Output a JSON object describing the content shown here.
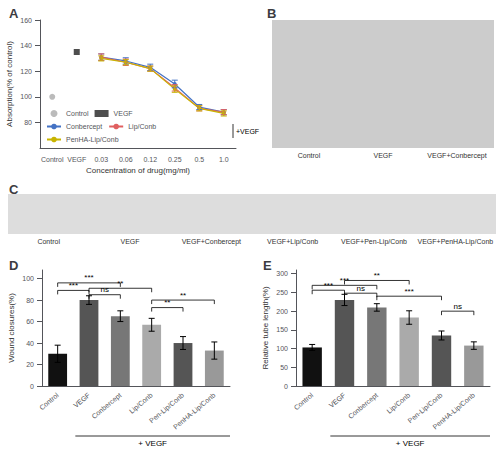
{
  "chart_data": [
    {
      "type": "line",
      "title": "A",
      "categories": [
        "Control",
        "VEGF",
        "0.03",
        "0.06",
        "0.12",
        "0.25",
        "0.5",
        "1.0"
      ],
      "series": [
        {
          "name": "Control",
          "type": "scatter",
          "color": "#aaaaaa",
          "marker": "circle",
          "values": [
            100,
            null,
            null,
            null,
            null,
            null,
            null,
            null
          ]
        },
        {
          "name": "VEGF",
          "type": "scatter",
          "color": "#222222",
          "marker": "square",
          "values": [
            null,
            135,
            null,
            null,
            null,
            null,
            null,
            null
          ]
        },
        {
          "name": "Conbercept",
          "type": "line",
          "color": "#4472c4",
          "marker": "circle",
          "values": [
            null,
            null,
            131,
            128,
            123,
            110,
            92,
            88
          ],
          "yerr": [
            null,
            null,
            2.5,
            2.5,
            2.5,
            3,
            2,
            2
          ]
        },
        {
          "name": "Lip/Conb",
          "type": "line",
          "color": "#e06060",
          "marker": "circle",
          "values": [
            null,
            null,
            131,
            127,
            122,
            107,
            91,
            88
          ],
          "yerr": [
            null,
            null,
            2.5,
            2.5,
            2,
            2.5,
            2,
            2
          ]
        },
        {
          "name": "PenHA-Lip/Conb",
          "type": "line",
          "color": "#c8b400",
          "marker": "circle",
          "values": [
            null,
            null,
            130,
            127,
            122,
            106,
            91,
            87
          ],
          "yerr": [
            null,
            null,
            2,
            2,
            2,
            2.5,
            2,
            2
          ]
        }
      ],
      "xlabel": "Concentration of drug(mg/ml)",
      "ylabel": "Absorption(% of control)",
      "ylim": [
        60,
        160
      ],
      "yticks": [
        80,
        100,
        120,
        140,
        160
      ],
      "legend": "lower left",
      "grid": false,
      "annotations": [
        "+VEGF"
      ]
    },
    {
      "type": "placeholder",
      "title": "B",
      "categories": [
        "Control",
        "VEGF",
        "VEGF+Conbercept"
      ],
      "color": "#cccccc"
    },
    {
      "type": "placeholder",
      "title": "C",
      "categories": [
        "Control",
        "VEGF",
        "VEGF+Conbercept",
        "VEGF+Lip/Conb",
        "VEGF+Pen-Lip/Conb",
        "VEGF+PenHA-Lip/Conb"
      ],
      "color": "#dddddd"
    },
    {
      "type": "bar",
      "title": "D",
      "categories": [
        "Control",
        "VEGF",
        "Conbercept",
        "Lip/Conb",
        "Pen-Lip/Conb",
        "PenHA-Lip/Conb"
      ],
      "values": [
        30,
        80,
        65,
        57,
        40,
        33
      ],
      "yerr": [
        8,
        4,
        5,
        6,
        6,
        8
      ],
      "colors": [
        "#111111",
        "#555555",
        "#777777",
        "#aaaaaa",
        "#555555",
        "#999999"
      ],
      "ylabel": "Wound closures(%)",
      "ylim": [
        0,
        108
      ],
      "yticks": [
        0,
        20,
        40,
        60,
        80,
        100
      ],
      "grid": false,
      "brackets": [
        {
          "label": "***",
          "from": "Control",
          "to": "VEGF",
          "y": 89
        },
        {
          "label": "***",
          "from": "Control",
          "to": "Conbercept",
          "y": 96
        },
        {
          "label": "ns",
          "from": "VEGF",
          "to": "Conbercept",
          "y": 85
        },
        {
          "label": "**",
          "from": "VEGF",
          "to": "Lip/Conb",
          "y": 91
        },
        {
          "label": "**",
          "from": "Lip/Conb",
          "to": "Pen-Lip/Conb",
          "y": 73
        },
        {
          "label": "**",
          "from": "Lip/Conb",
          "to": "PenHA-Lip/Conb",
          "y": 80
        }
      ],
      "annotations": [
        "+ VEGF"
      ]
    },
    {
      "type": "bar",
      "title": "E",
      "categories": [
        "Control",
        "VEGF",
        "Conbercept",
        "Lip/Conb",
        "Pen-Lip/Conb",
        "PenHA-Lip/Conb"
      ],
      "values": [
        103,
        230,
        210,
        183,
        135,
        108
      ],
      "yerr": [
        8,
        15,
        10,
        18,
        12,
        10
      ],
      "colors": [
        "#111111",
        "#555555",
        "#777777",
        "#aaaaaa",
        "#555555",
        "#999999"
      ],
      "ylabel": "Relative tube length(%)",
      "ylim": [
        0,
        310
      ],
      "yticks": [
        0,
        50,
        100,
        150,
        200,
        250,
        300
      ],
      "grid": false,
      "brackets": [
        {
          "label": "***",
          "from": "Control",
          "to": "VEGF",
          "y": 256
        },
        {
          "label": "***",
          "from": "Control",
          "to": "Conbercept",
          "y": 269
        },
        {
          "label": "ns",
          "from": "VEGF",
          "to": "Conbercept",
          "y": 248
        },
        {
          "label": "**",
          "from": "VEGF",
          "to": "Lip/Conb",
          "y": 282
        },
        {
          "label": "***",
          "from": "Conbercept",
          "to": "Pen-Lip/Conb",
          "y": 240
        },
        {
          "label": "ns",
          "from": "Pen-Lip/Conb",
          "to": "PenHA-Lip/Conb",
          "y": 200
        }
      ],
      "annotations": [
        "+ VEGF"
      ]
    }
  ]
}
